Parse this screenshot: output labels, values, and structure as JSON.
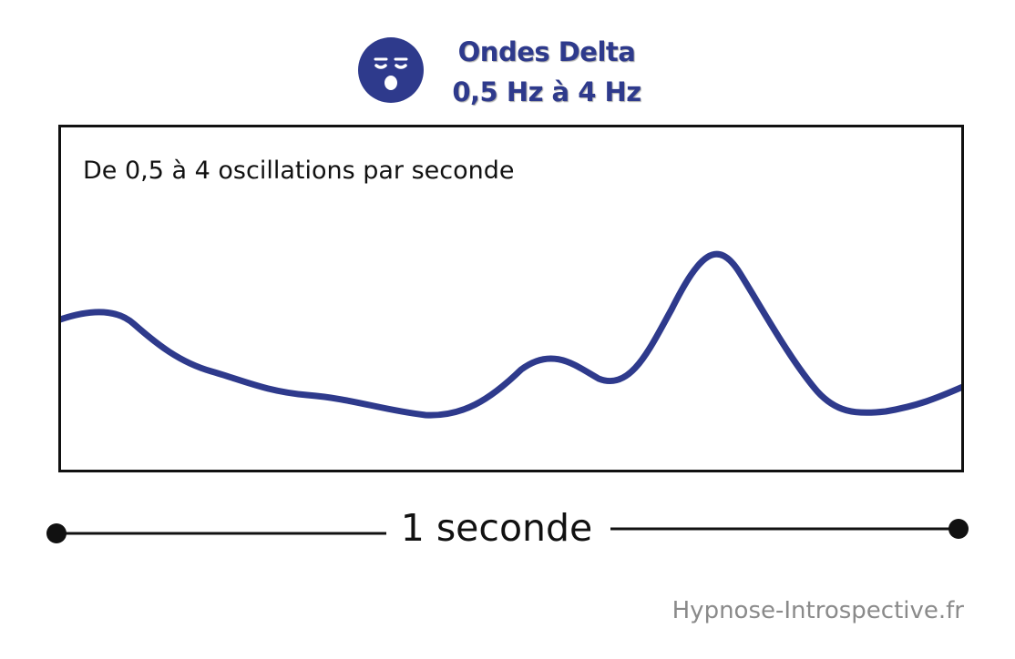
{
  "header": {
    "icon": "sleeping-face-icon",
    "title": "Ondes Delta",
    "frequency_range": "0,5 Hz à 4 Hz"
  },
  "wave_panel": {
    "caption": "De 0,5 à 4 oscillations par seconde"
  },
  "time_scale": {
    "label": "1 seconde"
  },
  "credit": "Hypnose-Introspective.fr",
  "colors": {
    "accent": "#2e3a8c",
    "wave": "#2e3a8c",
    "frame": "#111111",
    "credit": "#8a8a8a"
  }
}
